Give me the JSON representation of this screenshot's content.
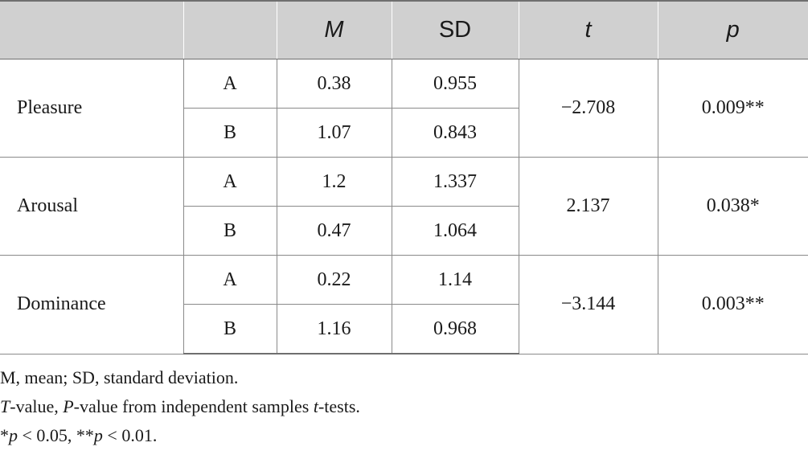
{
  "table": {
    "headers": [
      "",
      "",
      "M",
      "SD",
      "t",
      "p"
    ],
    "rows": [
      {
        "label": "Pleasure",
        "t": "−2.708",
        "p": "0.009**",
        "groups": [
          {
            "group": "A",
            "m": "0.38",
            "sd": "0.955"
          },
          {
            "group": "B",
            "m": "1.07",
            "sd": "0.843"
          }
        ]
      },
      {
        "label": "Arousal",
        "t": "2.137",
        "p": "0.038*",
        "groups": [
          {
            "group": "A",
            "m": "1.2",
            "sd": "1.337"
          },
          {
            "group": "B",
            "m": "0.47",
            "sd": "1.064"
          }
        ]
      },
      {
        "label": "Dominance",
        "t": "−3.144",
        "p": "0.003**",
        "groups": [
          {
            "group": "A",
            "m": "0.22",
            "sd": "1.14"
          },
          {
            "group": "B",
            "m": "1.16",
            "sd": "0.968"
          }
        ]
      }
    ]
  },
  "footnotes": {
    "line1": "M, mean; SD, standard deviation.",
    "line2": {
      "t1": "T",
      "t2": "-value, ",
      "t3": "P",
      "t4": "-value from independent samples ",
      "t5": "t",
      "t6": "-tests."
    },
    "line3": {
      "t1": "*",
      "t2": "p",
      "t3": " < 0.05, **",
      "t4": "p",
      "t5": " < 0.01."
    }
  }
}
